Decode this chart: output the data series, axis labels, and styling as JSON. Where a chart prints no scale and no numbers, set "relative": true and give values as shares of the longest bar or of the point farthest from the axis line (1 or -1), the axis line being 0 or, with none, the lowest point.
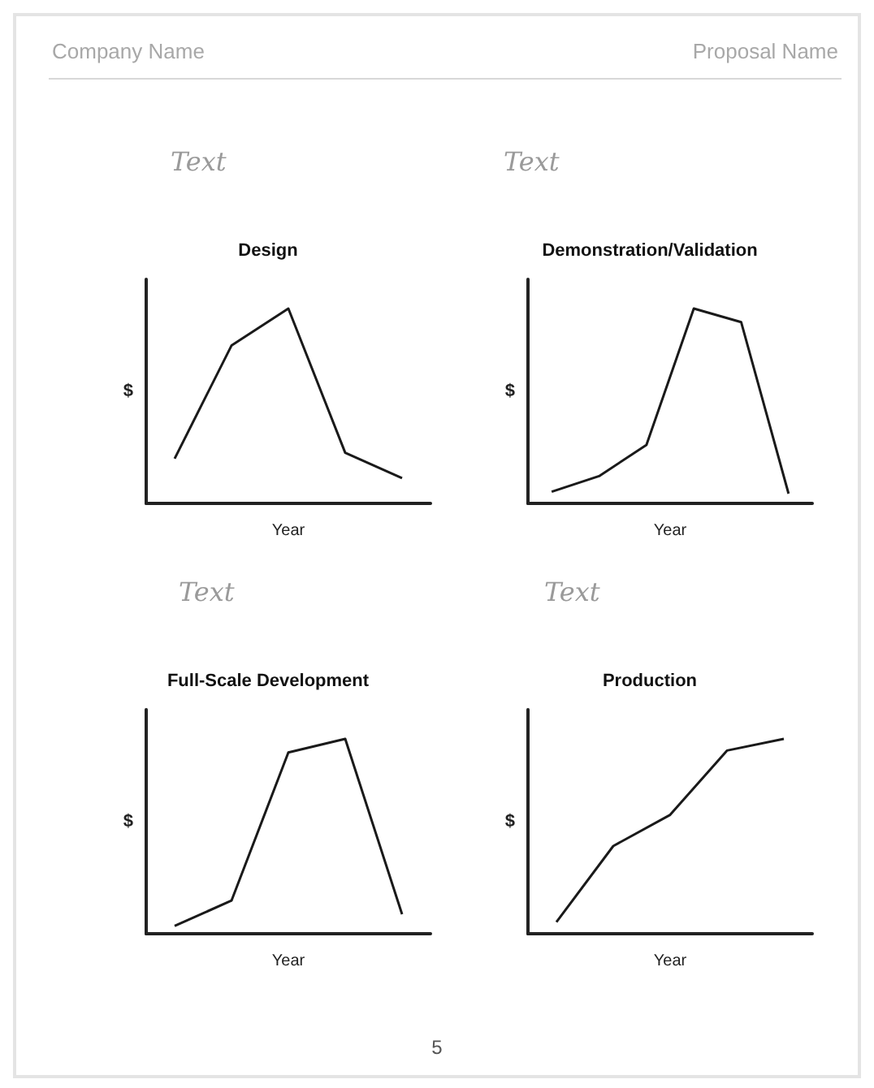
{
  "chart_data": [
    {
      "type": "line",
      "title": "Design",
      "xlabel": "Year",
      "ylabel": "$",
      "annotations": [
        "Company Name",
        "Text"
      ],
      "relative": true,
      "marker": "none",
      "categories": [
        null,
        null,
        null,
        null,
        null
      ],
      "series": [
        {
          "color": "#1a1a1a",
          "values": [
            0.23,
            0.81,
            1,
            0.26,
            0.13
          ]
        }
      ]
    },
    {
      "type": "line",
      "title": "Demonstration/Validation",
      "xlabel": "Year",
      "ylabel": "$",
      "annotations": [
        "Proposal Name",
        "Text"
      ],
      "relative": true,
      "marker": "none",
      "categories": [
        null,
        null,
        null,
        null,
        null,
        null
      ],
      "series": [
        {
          "color": "#1a1a1a",
          "values": [
            0.06,
            0.14,
            0.3,
            1,
            0.93,
            0.05
          ]
        }
      ]
    },
    {
      "type": "line",
      "title": "Full-Scale Development",
      "xlabel": "Year",
      "ylabel": "$",
      "annotations": [
        "Text"
      ],
      "relative": true,
      "marker": "none",
      "categories": [
        null,
        null,
        null,
        null,
        null
      ],
      "series": [
        {
          "color": "#1a1a1a",
          "values": [
            0.04,
            0.17,
            0.93,
            1,
            0.1
          ]
        }
      ]
    },
    {
      "type": "line",
      "title": "Production",
      "xlabel": "Year",
      "ylabel": "$",
      "annotations": [
        "Text",
        "5"
      ],
      "relative": true,
      "marker": "none",
      "categories": [
        null,
        null,
        null,
        null,
        null
      ],
      "series": [
        {
          "color": "#1a1a1a",
          "values": [
            0.06,
            0.45,
            0.61,
            0.94,
            1
          ]
        }
      ]
    }
  ]
}
